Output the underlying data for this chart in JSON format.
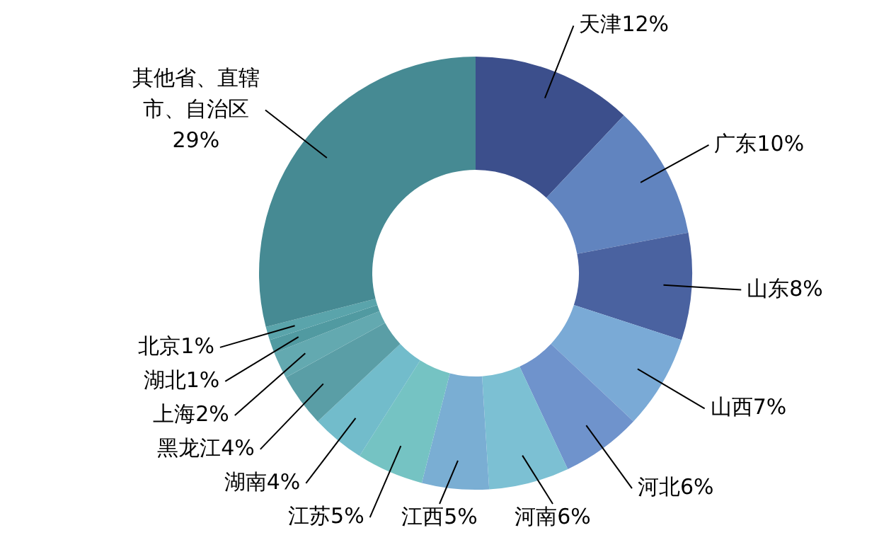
{
  "chart_data": {
    "type": "donut",
    "categories": [
      "天津",
      "广东",
      "山东",
      "山西",
      "河北",
      "河南",
      "江西",
      "江苏",
      "湖南",
      "黑龙江",
      "上海",
      "湖北",
      "北京",
      "其他省、直辖市、自治区"
    ],
    "values": [
      12,
      10,
      8,
      7,
      6,
      6,
      5,
      5,
      4,
      4,
      2,
      1,
      1,
      29
    ],
    "colors": [
      "#3c4f8c",
      "#6184bf",
      "#4a62a0",
      "#7aaad6",
      "#6f93cc",
      "#7cc0d3",
      "#7aaed3",
      "#75c3c3",
      "#72bccb",
      "#5a9ea6",
      "#63a9b0",
      "#519aa1",
      "#5aa4ab",
      "#468a93"
    ],
    "value_labels": [
      "12%",
      "10%",
      "8%",
      "7%",
      "6%",
      "6%",
      "5%",
      "5%",
      "4%",
      "4%",
      "2%",
      "1%",
      "1%",
      "29%"
    ]
  }
}
